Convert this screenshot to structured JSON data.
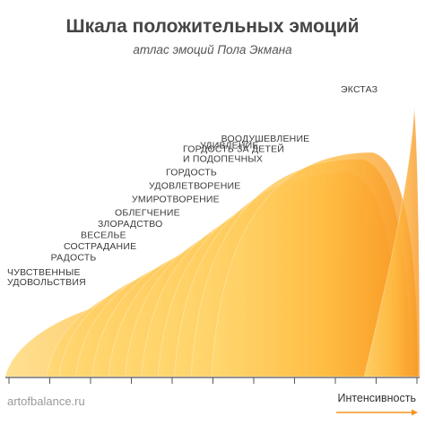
{
  "header": {
    "title": "Шкала положительных эмоций",
    "subtitle": "атлас эмоций Пола Экмана"
  },
  "footer": {
    "site": "artofbalance.ru",
    "axis_label": "Интенсивность"
  },
  "colors": {
    "petal_light": "#ffd873",
    "petal_mid": "#ffbe45",
    "petal_dark": "#f7941e",
    "axis": "#555555",
    "arrow": "#f7941e"
  },
  "emotions": [
    {
      "label_lines": [
        "ЧУВСТВЕННЫЕ",
        "УДОВОЛЬСТВИЯ"
      ],
      "intensity_start": 0,
      "intensity_end": 5,
      "peak": 0.36
    },
    {
      "label_lines": [
        "РАДОСТЬ"
      ],
      "intensity_start": 1,
      "intensity_end": 6,
      "peak": 0.47
    },
    {
      "label_lines": [
        "СОСТРАДАНИЕ"
      ],
      "intensity_start": 1.3,
      "intensity_end": 6.5,
      "peak": 0.52
    },
    {
      "label_lines": [
        "ВЕСЕЛЬЕ"
      ],
      "intensity_start": 1.7,
      "intensity_end": 7,
      "peak": 0.57
    },
    {
      "label_lines": [
        "ЗЛОРАДСТВО"
      ],
      "intensity_start": 2.1,
      "intensity_end": 7.5,
      "peak": 0.62
    },
    {
      "label_lines": [
        "ОБЛЕГЧЕНИЕ"
      ],
      "intensity_start": 2.5,
      "intensity_end": 8,
      "peak": 0.67
    },
    {
      "label_lines": [
        "УМИРОТВОРЕНИЕ"
      ],
      "intensity_start": 2.9,
      "intensity_end": 8.4,
      "peak": 0.73
    },
    {
      "label_lines": [
        "УДОВЛЕТВОРЕНИЕ"
      ],
      "intensity_start": 3.3,
      "intensity_end": 8.8,
      "peak": 0.79
    },
    {
      "label_lines": [
        "ГОРДОСТЬ"
      ],
      "intensity_start": 3.7,
      "intensity_end": 9.2,
      "peak": 0.85
    },
    {
      "label_lines": [
        "ГОРДОСТЬ ЗА ДЕТЕЙ",
        "И ПОДОПЕЧНЫХ"
      ],
      "intensity_start": 4.1,
      "intensity_end": 9.5,
      "peak": 0.91
    },
    {
      "label_lines": [
        "УДИВЛЕНИЕ"
      ],
      "intensity_start": 4.5,
      "intensity_end": 9.8,
      "peak": 0.97
    },
    {
      "label_lines": [
        "ВООДУШЕВЛЕНИЕ"
      ],
      "intensity_start": 5,
      "intensity_end": 10,
      "peak": 1.0
    },
    {
      "label_lines": [
        "ЭКСТАЗ"
      ],
      "intensity_start": 8.7,
      "intensity_end": 10,
      "peak": 1.2
    }
  ]
}
